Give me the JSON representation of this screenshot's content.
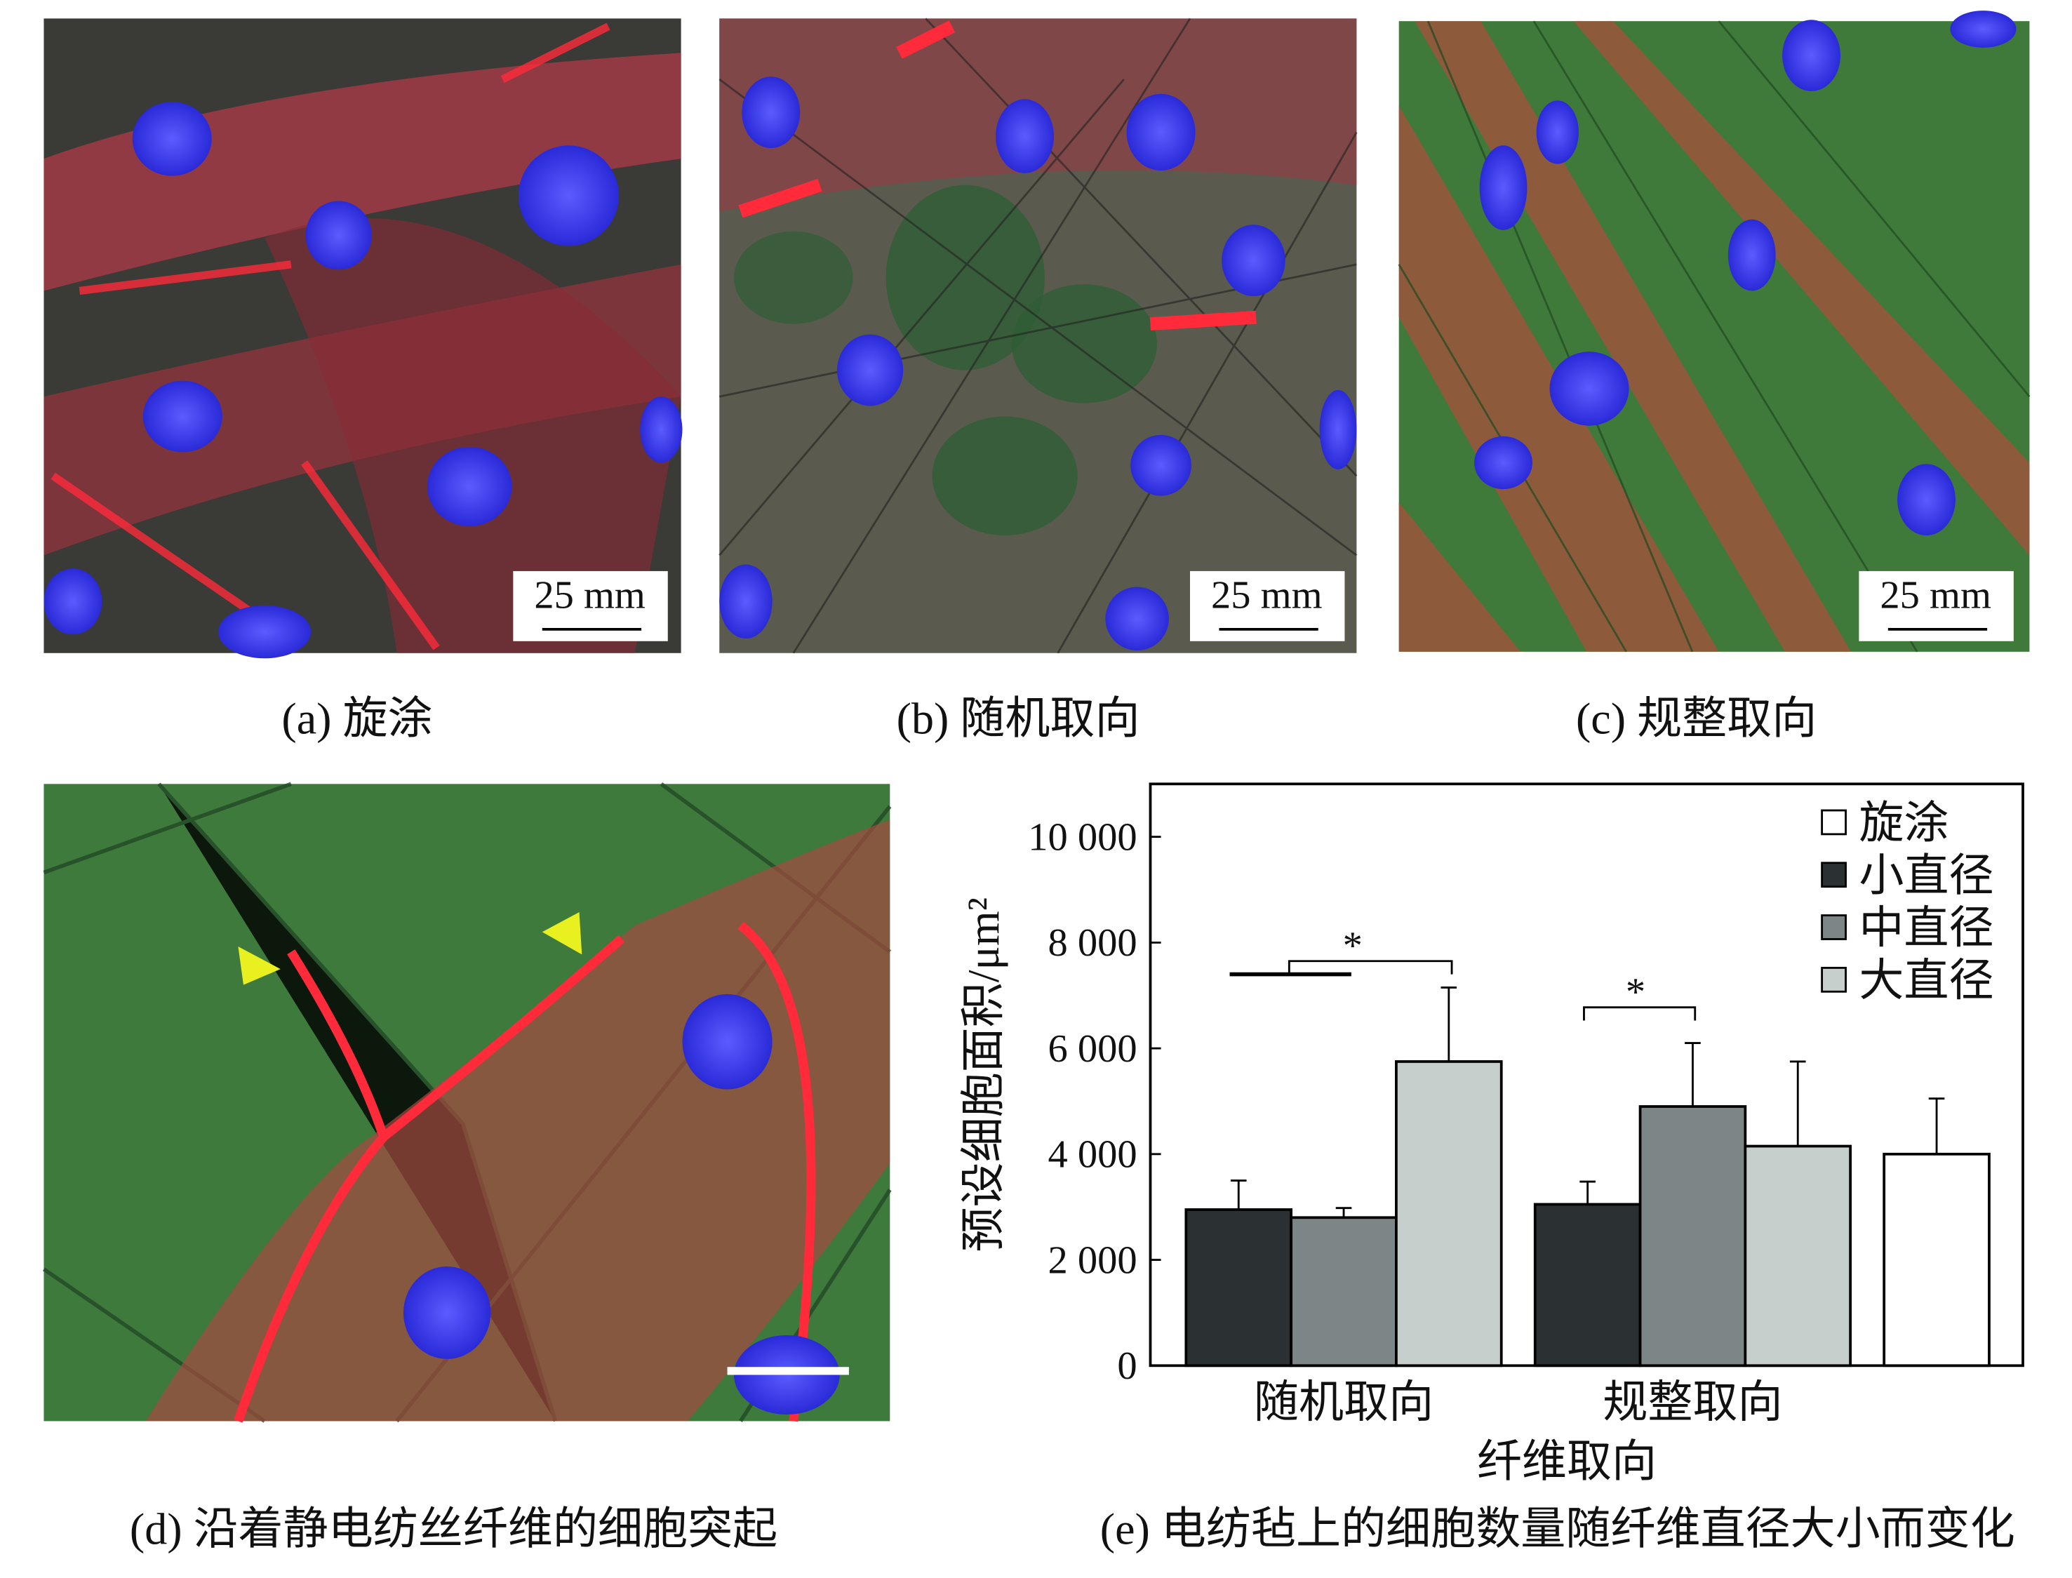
{
  "panels": [
    {
      "caption": "(a) 旋涂",
      "scale_bar": "25 mm"
    },
    {
      "caption": "(b) 随机取向",
      "scale_bar": "25 mm"
    },
    {
      "caption": "(c) 规整取向",
      "scale_bar": "25 mm"
    },
    {
      "caption": "(d) 沿着静电纺丝纤维的细胞突起"
    }
  ],
  "chart_data": {
    "type": "bar",
    "caption": "(e) 电纺毡上的细胞数量随纤维直径大小而变化",
    "x_label": "纤维取向",
    "y_label": "预设细胞面积/μm²",
    "categories": [
      "随机取向",
      "规整取向",
      null
    ],
    "series": [
      {
        "name": "旋涂",
        "color": "#ffffff",
        "values": [
          null,
          null,
          4000
        ],
        "errors": [
          null,
          null,
          1050
        ]
      },
      {
        "name": "小直径",
        "color": "#2b3133",
        "values": [
          2950,
          3050,
          null
        ],
        "errors": [
          550,
          430,
          null
        ]
      },
      {
        "name": "中直径",
        "color": "#7d8687",
        "values": [
          2800,
          4900,
          null
        ],
        "errors": [
          180,
          1200,
          null
        ]
      },
      {
        "name": "大直径",
        "color": "#c7cfcd",
        "values": [
          5750,
          4150,
          null
        ],
        "errors": [
          1400,
          1600,
          null
        ]
      }
    ],
    "ylim": [
      0,
      11000
    ],
    "yticks": [
      0,
      {
        "value": 2000,
        "label": "2 000"
      },
      {
        "value": 4000,
        "label": "4 000"
      },
      {
        "value": 6000,
        "label": "6 000"
      },
      {
        "value": 8000,
        "label": "8 000"
      },
      {
        "value": 10000,
        "label": "10 000"
      }
    ],
    "annotations": [
      "*",
      "*"
    ],
    "legend": "upper right"
  }
}
